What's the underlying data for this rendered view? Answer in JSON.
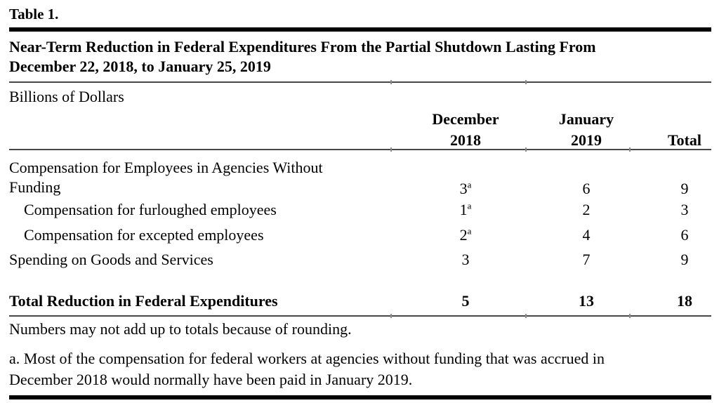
{
  "header": {
    "table_number": "Table 1.",
    "title": "Near-Term Reduction in Federal Expenditures From the Partial Shutdown Lasting From\nDecember 22, 2018, to January 25, 2019",
    "unit_label": "Billions of Dollars"
  },
  "table": {
    "columns": {
      "dec": "December\n2018",
      "jan": "January\n2019",
      "total": "Total"
    },
    "rows": [
      {
        "label": "Compensation for Employees in Agencies Without\nFunding",
        "dec": "3",
        "dec_note": "a",
        "jan": "6",
        "total": "9"
      },
      {
        "label": "Compensation for furloughed employees",
        "dec": "1",
        "dec_note": "a",
        "jan": "2",
        "total": "3"
      },
      {
        "label": "Compensation for excepted employees",
        "dec": "2",
        "dec_note": "a",
        "jan": "4",
        "total": "6"
      },
      {
        "label": "Spending on Goods and Services",
        "dec": "3",
        "jan": "7",
        "total": "9"
      }
    ],
    "total_row": {
      "label": "Total Reduction in Federal Expenditures",
      "dec": "5",
      "jan": "13",
      "total": "18"
    }
  },
  "notes": {
    "rounding": "Numbers may not add up to totals because of rounding.",
    "footnote_a": "a. Most of the compensation for federal workers at agencies without funding that was accrued in\nDecember 2018 would normally have been paid in January 2019."
  }
}
